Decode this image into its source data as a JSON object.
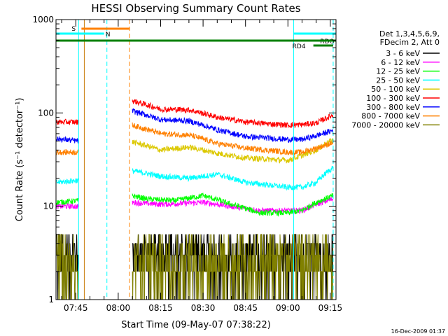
{
  "chart_data": {
    "type": "line",
    "title": "HESSI Observing Summary Count Rates",
    "xlabel": "Start Time (09-May-07 07:38:22)",
    "ylabel": "Count Rate (s⁻¹ detector⁻¹)",
    "y_scale": "log",
    "ylim": [
      1,
      1000
    ],
    "y_ticks": [
      {
        "value": 1,
        "label": "1"
      },
      {
        "value": 10,
        "label": "10"
      },
      {
        "value": 100,
        "label": "100"
      },
      {
        "value": 1000,
        "label": "1000"
      }
    ],
    "xlim": [
      "07:38",
      "09:17"
    ],
    "x_ticks": [
      "07:45",
      "08:00",
      "08:15",
      "08:30",
      "08:45",
      "09:00",
      "09:15"
    ],
    "grid": false,
    "legend_position": "right",
    "legend_header": [
      "Det 1,3,4,5,6,9,",
      "FDecim 2, Att 0"
    ],
    "timestamp": "16-Dec-2009 01:37",
    "flags": [
      {
        "label": "S",
        "color": "#ff8000",
        "start": "07:47",
        "end": "08:04"
      },
      {
        "label": "N",
        "color": "#00ffff",
        "start": "07:38",
        "end": "07:55"
      },
      {
        "label": "RDO",
        "color": "#00ffff",
        "start": "09:02",
        "end": "09:17"
      },
      {
        "label": "RD4",
        "color": "#008000",
        "start": "09:09",
        "end": "09:16"
      },
      {
        "label": "",
        "color": "#008000",
        "start": "07:38",
        "end": "09:17"
      }
    ],
    "vertical_lines": [
      {
        "time": "07:46",
        "color": "#00ffff",
        "style": "solid"
      },
      {
        "time": "07:48",
        "color": "#c87800",
        "style": "solid"
      },
      {
        "time": "07:56",
        "color": "#00ffff",
        "style": "dashed"
      },
      {
        "time": "08:04",
        "color": "#ff8000",
        "style": "dashed"
      },
      {
        "time": "09:02",
        "color": "#00ffff",
        "style": "solid"
      },
      {
        "time": "09:16",
        "color": "#00ffff",
        "style": "dashed"
      }
    ],
    "data_gaps": [
      [
        "07:46",
        "08:05"
      ]
    ],
    "series": [
      {
        "name": "3 - 6 keV",
        "color": "#000000",
        "style": "noisy",
        "x": [
          "07:38",
          "07:42",
          "07:46",
          "08:05",
          "08:20",
          "08:40",
          "09:00",
          "09:10",
          "09:16"
        ],
        "values": [
          2.5,
          2.5,
          2.5,
          3,
          3,
          3,
          3,
          3,
          3
        ]
      },
      {
        "name": "6 - 12 keV",
        "color": "#ff00ff",
        "x": [
          "07:38",
          "07:46",
          "08:05",
          "08:15",
          "08:30",
          "08:40",
          "08:50",
          "09:00",
          "09:05",
          "09:10",
          "09:16"
        ],
        "values": [
          10,
          10,
          11,
          10.5,
          11,
          10,
          9,
          9,
          9,
          10.5,
          12
        ]
      },
      {
        "name": "12 - 25 keV",
        "color": "#00ff00",
        "x": [
          "07:38",
          "07:46",
          "08:05",
          "08:10",
          "08:20",
          "08:30",
          "08:40",
          "08:50",
          "09:00",
          "09:05",
          "09:10",
          "09:16"
        ],
        "values": [
          11,
          11.5,
          13,
          12,
          11.5,
          13,
          10.5,
          8.5,
          8.5,
          9,
          11,
          13
        ]
      },
      {
        "name": "25 - 50 keV",
        "color": "#00ffff",
        "x": [
          "07:38",
          "07:46",
          "08:05",
          "08:15",
          "08:25",
          "08:35",
          "08:45",
          "09:00",
          "09:05",
          "09:10",
          "09:16"
        ],
        "values": [
          18,
          19,
          24,
          21,
          20,
          22,
          18,
          16,
          16,
          18,
          26
        ]
      },
      {
        "name": "50 - 100 keV",
        "color": "#dcc800",
        "x": [
          "07:38",
          "07:46",
          "08:05",
          "08:15",
          "08:25",
          "08:35",
          "08:45",
          "09:00",
          "09:05",
          "09:10",
          "09:16"
        ],
        "values": [
          null,
          null,
          49,
          40,
          43,
          37,
          33,
          31,
          35,
          40,
          52
        ]
      },
      {
        "name": "100 - 300 keV",
        "color": "#ff0000",
        "x": [
          "07:38",
          "07:46",
          "08:05",
          "08:15",
          "08:25",
          "08:35",
          "08:45",
          "09:00",
          "09:05",
          "09:10",
          "09:16"
        ],
        "values": [
          80,
          80,
          135,
          110,
          108,
          90,
          80,
          74,
          75,
          78,
          95
        ]
      },
      {
        "name": "300 - 800 keV",
        "color": "#0000ff",
        "x": [
          "07:38",
          "07:46",
          "08:05",
          "08:15",
          "08:25",
          "08:35",
          "08:45",
          "09:00",
          "09:05",
          "09:10",
          "09:16"
        ],
        "values": [
          53,
          50,
          105,
          85,
          82,
          66,
          56,
          52,
          52,
          57,
          65
        ]
      },
      {
        "name": "800 - 7000 keV",
        "color": "#ff8000",
        "x": [
          "07:38",
          "07:46",
          "08:05",
          "08:15",
          "08:25",
          "08:35",
          "08:45",
          "09:00",
          "09:05",
          "09:10",
          "09:16"
        ],
        "values": [
          38,
          38,
          74,
          60,
          58,
          47,
          42,
          38,
          38,
          42,
          48
        ]
      },
      {
        "name": "7000 - 20000 keV",
        "color": "#808000",
        "style": "noisy",
        "x": [
          "07:38",
          "07:42",
          "07:46",
          "08:05",
          "08:20",
          "08:40",
          "09:00",
          "09:10",
          "09:16"
        ],
        "values": [
          2,
          2,
          2,
          2,
          2,
          2,
          2,
          2,
          2
        ]
      }
    ]
  }
}
